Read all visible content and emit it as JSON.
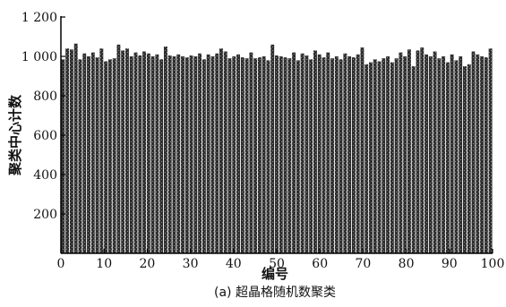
{
  "chart_data": {
    "type": "bar",
    "xlabel": "编号",
    "ylabel": "聚类中心计数",
    "caption": "(a) 超晶格随机数聚类",
    "xlim": [
      0,
      100
    ],
    "ylim": [
      0,
      1200
    ],
    "x_ticks": [
      0,
      10,
      20,
      30,
      40,
      50,
      60,
      70,
      80,
      90,
      100
    ],
    "y_ticks": [
      200,
      400,
      600,
      800,
      1000,
      1200
    ],
    "y_tick_labels": [
      "200",
      "400",
      "600",
      "800",
      "1 000",
      "1 200"
    ],
    "bar_color": "#2b2b2b",
    "grid": false,
    "values": [
      985,
      1040,
      1035,
      1065,
      985,
      1015,
      1000,
      1020,
      995,
      1040,
      975,
      985,
      990,
      1060,
      1030,
      1040,
      1000,
      1020,
      1005,
      1025,
      1015,
      1000,
      1010,
      985,
      1050,
      1005,
      1000,
      1010,
      1000,
      995,
      1005,
      1000,
      1015,
      985,
      1010,
      1000,
      1015,
      1040,
      1025,
      990,
      1000,
      1010,
      995,
      990,
      1020,
      990,
      995,
      1000,
      980,
      1060,
      1005,
      1000,
      995,
      990,
      1020,
      980,
      1015,
      1005,
      985,
      1030,
      1010,
      995,
      1020,
      990,
      1000,
      985,
      1015,
      1000,
      995,
      1010,
      1045,
      960,
      970,
      985,
      975,
      990,
      1000,
      970,
      990,
      1020,
      1000,
      1035,
      950,
      1030,
      1045,
      1010,
      1000,
      1025,
      990,
      1000,
      970,
      1010,
      980,
      1000,
      950,
      960,
      1025,
      1010,
      1000,
      995,
      1040
    ]
  }
}
